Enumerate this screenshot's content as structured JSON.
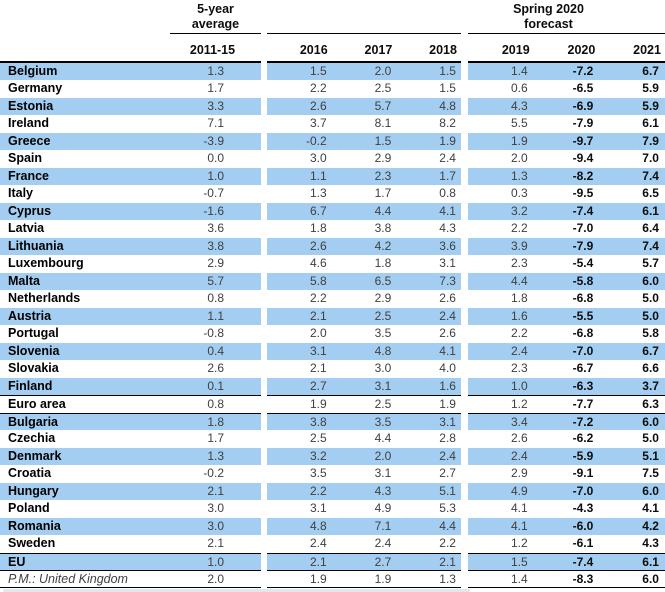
{
  "colors": {
    "highlight": "#a3cef1",
    "rule": "#000000",
    "regular_text": "#3f3f3f",
    "bold_text": "#0d0d0d"
  },
  "table": {
    "header": {
      "avg_line1": "5-year",
      "avg_line2": "average",
      "forecast_line1": "Spring 2020",
      "forecast_line2": "forecast",
      "years": [
        "2011-15",
        "2016",
        "2017",
        "2018",
        "2019",
        "2020",
        "2021"
      ]
    },
    "bold_value_columns": [
      "2020",
      "2021"
    ],
    "rows": [
      {
        "name": "Belgium",
        "highlight": true,
        "rule_above": false,
        "italic": false,
        "values": [
          "1.3",
          "1.5",
          "2.0",
          "1.5",
          "1.4",
          "-7.2",
          "6.7"
        ]
      },
      {
        "name": "Germany",
        "highlight": false,
        "rule_above": false,
        "italic": false,
        "values": [
          "1.7",
          "2.2",
          "2.5",
          "1.5",
          "0.6",
          "-6.5",
          "5.9"
        ]
      },
      {
        "name": "Estonia",
        "highlight": true,
        "rule_above": false,
        "italic": false,
        "values": [
          "3.3",
          "2.6",
          "5.7",
          "4.8",
          "4.3",
          "-6.9",
          "5.9"
        ]
      },
      {
        "name": "Ireland",
        "highlight": false,
        "rule_above": false,
        "italic": false,
        "values": [
          "7.1",
          "3.7",
          "8.1",
          "8.2",
          "5.5",
          "-7.9",
          "6.1"
        ]
      },
      {
        "name": "Greece",
        "highlight": true,
        "rule_above": false,
        "italic": false,
        "values": [
          "-3.9",
          "-0.2",
          "1.5",
          "1.9",
          "1.9",
          "-9.7",
          "7.9"
        ]
      },
      {
        "name": "Spain",
        "highlight": false,
        "rule_above": false,
        "italic": false,
        "values": [
          "0.0",
          "3.0",
          "2.9",
          "2.4",
          "2.0",
          "-9.4",
          "7.0"
        ]
      },
      {
        "name": "France",
        "highlight": true,
        "rule_above": false,
        "italic": false,
        "values": [
          "1.0",
          "1.1",
          "2.3",
          "1.7",
          "1.3",
          "-8.2",
          "7.4"
        ]
      },
      {
        "name": "Italy",
        "highlight": false,
        "rule_above": false,
        "italic": false,
        "values": [
          "-0.7",
          "1.3",
          "1.7",
          "0.8",
          "0.3",
          "-9.5",
          "6.5"
        ]
      },
      {
        "name": "Cyprus",
        "highlight": true,
        "rule_above": false,
        "italic": false,
        "values": [
          "-1.6",
          "6.7",
          "4.4",
          "4.1",
          "3.2",
          "-7.4",
          "6.1"
        ]
      },
      {
        "name": "Latvia",
        "highlight": false,
        "rule_above": false,
        "italic": false,
        "values": [
          "3.6",
          "1.8",
          "3.8",
          "4.3",
          "2.2",
          "-7.0",
          "6.4"
        ]
      },
      {
        "name": "Lithuania",
        "highlight": true,
        "rule_above": false,
        "italic": false,
        "values": [
          "3.8",
          "2.6",
          "4.2",
          "3.6",
          "3.9",
          "-7.9",
          "7.4"
        ]
      },
      {
        "name": "Luxembourg",
        "highlight": false,
        "rule_above": false,
        "italic": false,
        "values": [
          "2.9",
          "4.6",
          "1.8",
          "3.1",
          "2.3",
          "-5.4",
          "5.7"
        ]
      },
      {
        "name": "Malta",
        "highlight": true,
        "rule_above": false,
        "italic": false,
        "values": [
          "5.7",
          "5.8",
          "6.5",
          "7.3",
          "4.4",
          "-5.8",
          "6.0"
        ]
      },
      {
        "name": "Netherlands",
        "highlight": false,
        "rule_above": false,
        "italic": false,
        "values": [
          "0.8",
          "2.2",
          "2.9",
          "2.6",
          "1.8",
          "-6.8",
          "5.0"
        ]
      },
      {
        "name": "Austria",
        "highlight": true,
        "rule_above": false,
        "italic": false,
        "values": [
          "1.1",
          "2.1",
          "2.5",
          "2.4",
          "1.6",
          "-5.5",
          "5.0"
        ]
      },
      {
        "name": "Portugal",
        "highlight": false,
        "rule_above": false,
        "italic": false,
        "values": [
          "-0.8",
          "2.0",
          "3.5",
          "2.6",
          "2.2",
          "-6.8",
          "5.8"
        ]
      },
      {
        "name": "Slovenia",
        "highlight": true,
        "rule_above": false,
        "italic": false,
        "values": [
          "0.4",
          "3.1",
          "4.8",
          "4.1",
          "2.4",
          "-7.0",
          "6.7"
        ]
      },
      {
        "name": "Slovakia",
        "highlight": false,
        "rule_above": false,
        "italic": false,
        "values": [
          "2.6",
          "2.1",
          "3.0",
          "4.0",
          "2.3",
          "-6.7",
          "6.6"
        ]
      },
      {
        "name": "Finland",
        "highlight": true,
        "rule_above": false,
        "italic": false,
        "values": [
          "0.1",
          "2.7",
          "3.1",
          "1.6",
          "1.0",
          "-6.3",
          "3.7"
        ]
      },
      {
        "name": "Euro area",
        "highlight": false,
        "rule_above": true,
        "italic": false,
        "values": [
          "0.8",
          "1.9",
          "2.5",
          "1.9",
          "1.2",
          "-7.7",
          "6.3"
        ]
      },
      {
        "name": "Bulgaria",
        "highlight": true,
        "rule_above": true,
        "italic": false,
        "values": [
          "1.8",
          "3.8",
          "3.5",
          "3.1",
          "3.4",
          "-7.2",
          "6.0"
        ]
      },
      {
        "name": "Czechia",
        "highlight": false,
        "rule_above": false,
        "italic": false,
        "values": [
          "1.7",
          "2.5",
          "4.4",
          "2.8",
          "2.6",
          "-6.2",
          "5.0"
        ]
      },
      {
        "name": "Denmark",
        "highlight": true,
        "rule_above": false,
        "italic": false,
        "values": [
          "1.3",
          "3.2",
          "2.0",
          "2.4",
          "2.4",
          "-5.9",
          "5.1"
        ]
      },
      {
        "name": "Croatia",
        "highlight": false,
        "rule_above": false,
        "italic": false,
        "values": [
          "-0.2",
          "3.5",
          "3.1",
          "2.7",
          "2.9",
          "-9.1",
          "7.5"
        ]
      },
      {
        "name": "Hungary",
        "highlight": true,
        "rule_above": false,
        "italic": false,
        "values": [
          "2.1",
          "2.2",
          "4.3",
          "5.1",
          "4.9",
          "-7.0",
          "6.0"
        ]
      },
      {
        "name": "Poland",
        "highlight": false,
        "rule_above": false,
        "italic": false,
        "values": [
          "3.0",
          "3.1",
          "4.9",
          "5.3",
          "4.1",
          "-4.3",
          "4.1"
        ]
      },
      {
        "name": "Romania",
        "highlight": true,
        "rule_above": false,
        "italic": false,
        "values": [
          "3.0",
          "4.8",
          "7.1",
          "4.4",
          "4.1",
          "-6.0",
          "4.2"
        ]
      },
      {
        "name": "Sweden",
        "highlight": false,
        "rule_above": false,
        "italic": false,
        "values": [
          "2.1",
          "2.4",
          "2.4",
          "2.2",
          "1.2",
          "-6.1",
          "4.3"
        ]
      },
      {
        "name": "EU",
        "highlight": true,
        "rule_above": true,
        "italic": false,
        "values": [
          "1.0",
          "2.1",
          "2.7",
          "2.1",
          "1.5",
          "-7.4",
          "6.1"
        ]
      },
      {
        "name": "P.M.: United Kingdom",
        "highlight": false,
        "rule_above": true,
        "italic": true,
        "values": [
          "2.0",
          "1.9",
          "1.9",
          "1.3",
          "1.4",
          "-8.3",
          "6.0"
        ]
      }
    ]
  }
}
